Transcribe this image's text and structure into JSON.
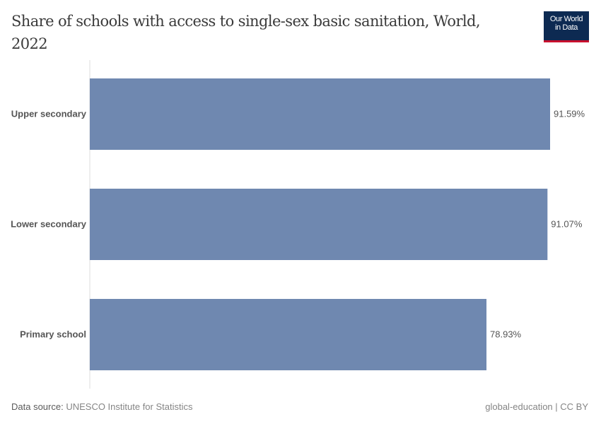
{
  "header": {
    "title": "Share of schools with access to single-sex basic sanitation, World, 2022",
    "logo_line1": "Our World",
    "logo_line2": "in Data"
  },
  "footer": {
    "source_label": "Data source:",
    "source": "UNESCO Institute for Statistics",
    "right": "global-education | CC BY"
  },
  "chart_data": {
    "type": "bar",
    "orientation": "horizontal",
    "title": "Share of schools with access to single-sex basic sanitation, World, 2022",
    "categories": [
      "Upper secondary",
      "Lower secondary",
      "Primary school"
    ],
    "values": [
      91.59,
      91.07,
      78.93
    ],
    "data_labels": [
      "91.59%",
      "91.07%",
      "78.93%"
    ],
    "unit": "%",
    "xlim": [
      0,
      91.59
    ],
    "grid": false,
    "bar_color": "#6f88b0"
  }
}
